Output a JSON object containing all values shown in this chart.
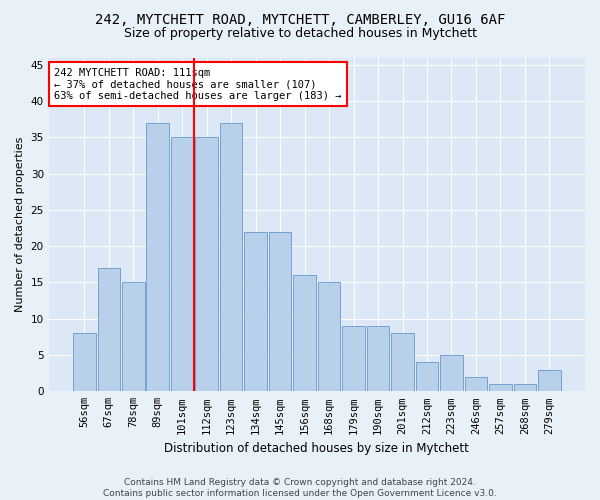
{
  "title1": "242, MYTCHETT ROAD, MYTCHETT, CAMBERLEY, GU16 6AF",
  "title2": "Size of property relative to detached houses in Mytchett",
  "xlabel": "Distribution of detached houses by size in Mytchett",
  "ylabel": "Number of detached properties",
  "categories": [
    "56sqm",
    "67sqm",
    "78sqm",
    "89sqm",
    "101sqm",
    "112sqm",
    "123sqm",
    "134sqm",
    "145sqm",
    "156sqm",
    "168sqm",
    "179sqm",
    "190sqm",
    "201sqm",
    "212sqm",
    "223sqm",
    "246sqm",
    "257sqm",
    "268sqm",
    "279sqm"
  ],
  "values": [
    8,
    17,
    15,
    37,
    35,
    35,
    37,
    22,
    22,
    16,
    15,
    9,
    9,
    8,
    4,
    5,
    2,
    1,
    1,
    3
  ],
  "bar_color": "#b8d0ea",
  "bar_edge_color": "#6699cc",
  "vline_index": 5,
  "annotation_text": "242 MYTCHETT ROAD: 111sqm\n← 37% of detached houses are smaller (107)\n63% of semi-detached houses are larger (183) →",
  "annotation_box_color": "white",
  "annotation_box_edge_color": "red",
  "vline_color": "red",
  "ylim": [
    0,
    46
  ],
  "yticks": [
    0,
    5,
    10,
    15,
    20,
    25,
    30,
    35,
    40,
    45
  ],
  "footnote": "Contains HM Land Registry data © Crown copyright and database right 2024.\nContains public sector information licensed under the Open Government Licence v3.0.",
  "bg_color": "#e8f0f8",
  "plot_bg_color": "#dce8f5",
  "grid_color": "white",
  "title1_fontsize": 10,
  "title2_fontsize": 9,
  "xlabel_fontsize": 8.5,
  "ylabel_fontsize": 8,
  "tick_fontsize": 7.5,
  "annot_fontsize": 7.5,
  "footnote_fontsize": 6.5
}
